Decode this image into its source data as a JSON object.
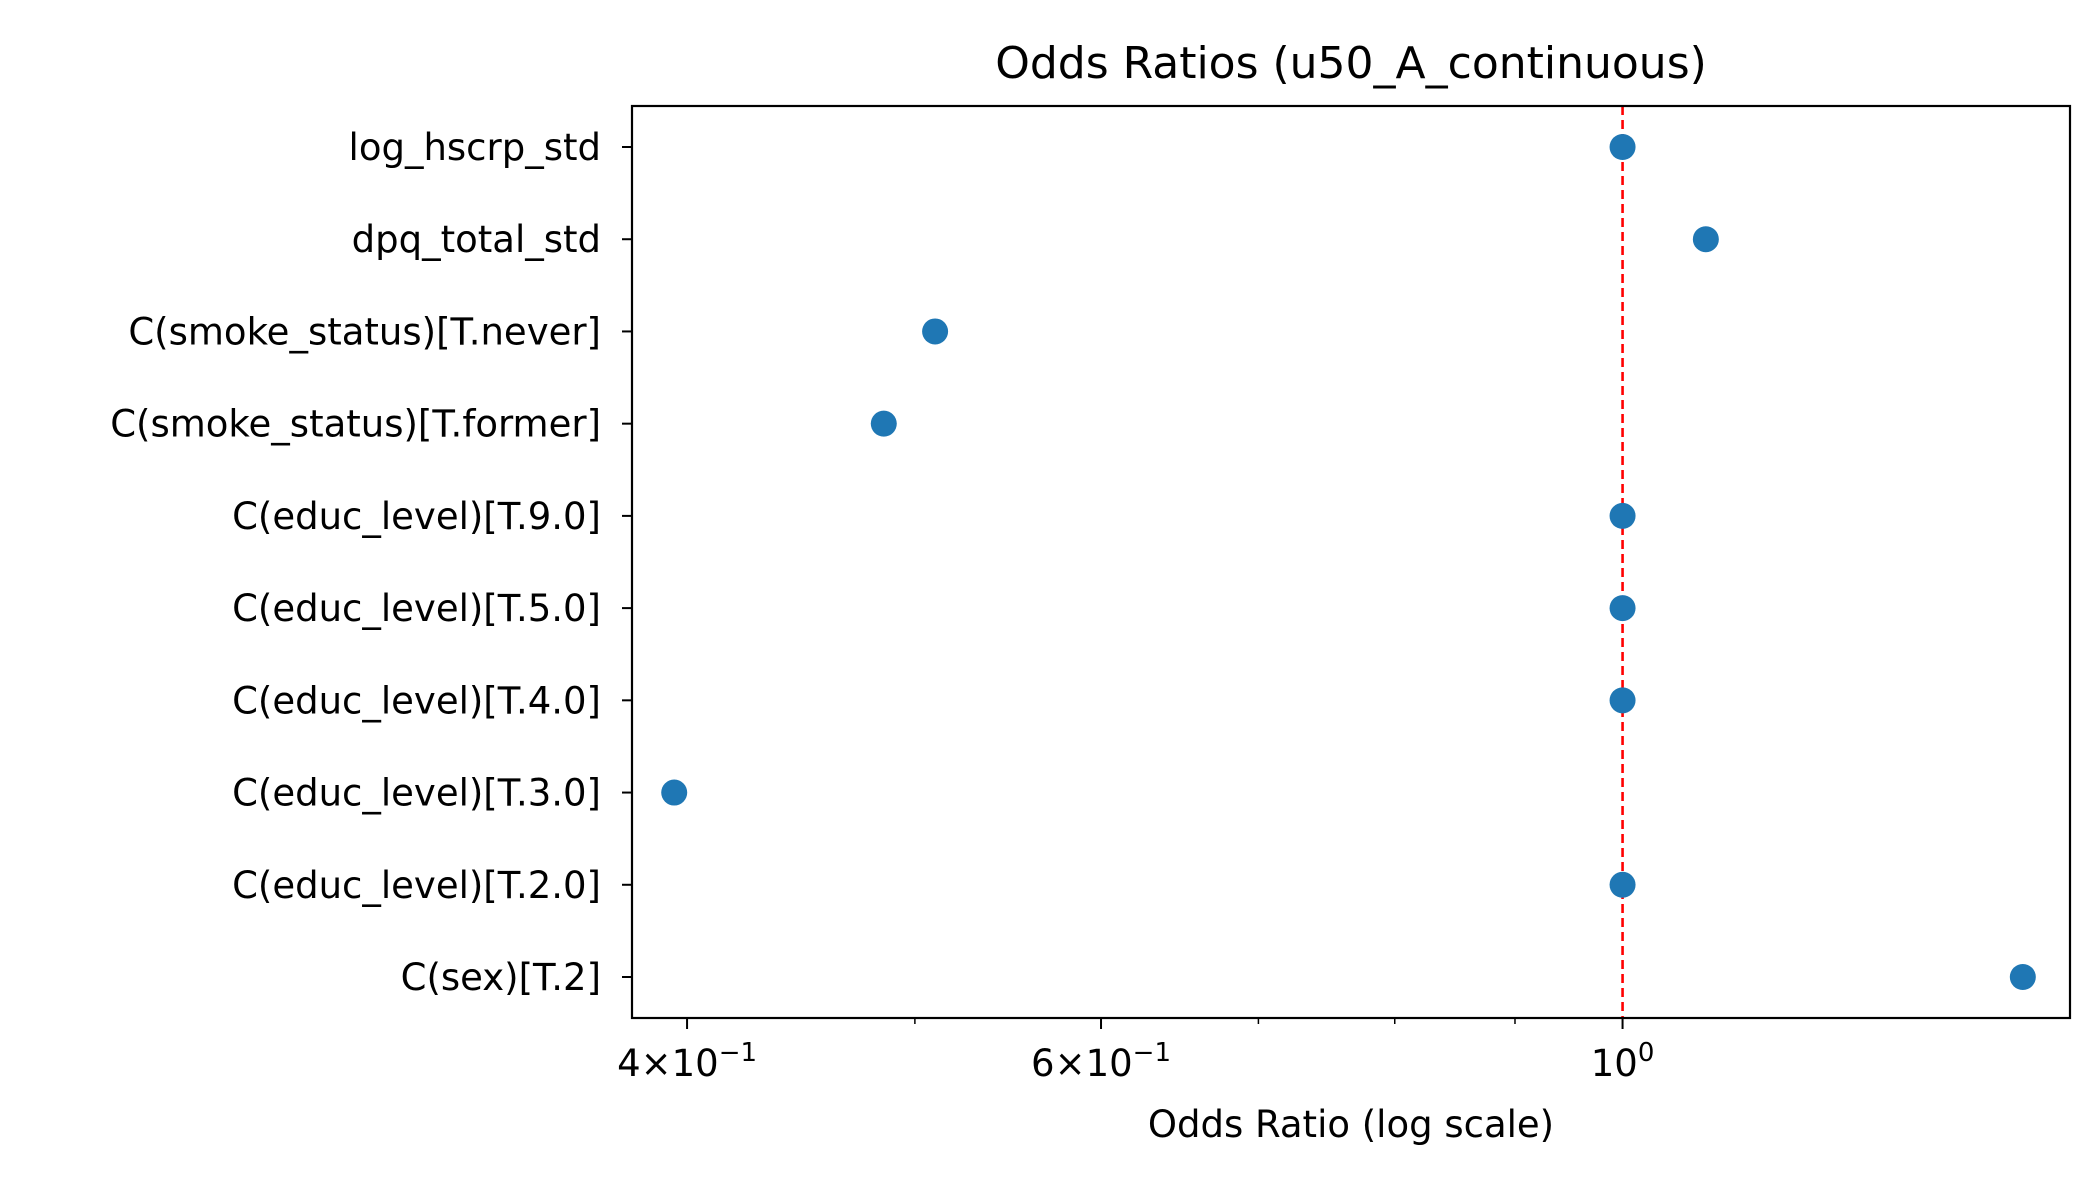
{
  "chart_data": {
    "type": "scatter",
    "title": "Odds Ratios (u50_A_continuous)",
    "xlabel": "Odds Ratio (log scale)",
    "ylabel": "",
    "xscale": "log",
    "xlim": [
      0.379,
      1.55
    ],
    "grid": false,
    "legend": "none",
    "categories": [
      "C(sex)[T.2]",
      "C(educ_level)[T.2.0]",
      "C(educ_level)[T.3.0]",
      "C(educ_level)[T.4.0]",
      "C(educ_level)[T.5.0]",
      "C(educ_level)[T.9.0]",
      "C(smoke_status)[T.former]",
      "C(smoke_status)[T.never]",
      "dpq_total_std",
      "log_hscrp_std"
    ],
    "values": [
      1.48,
      1.0,
      0.395,
      1.0,
      1.0,
      1.0,
      0.485,
      0.51,
      1.085,
      1.0
    ],
    "x_major_ticks": [
      {
        "value": 0.4,
        "mantissa": "4",
        "exp": "−1"
      },
      {
        "value": 0.6,
        "mantissa": "6",
        "exp": "−1"
      },
      {
        "value": 1.0,
        "mantissa": "",
        "exp": "0"
      }
    ],
    "x_minor_ticks": [
      0.5,
      0.7,
      0.8,
      0.9
    ],
    "reference_line": {
      "value": 1.0,
      "style": "dashed",
      "color": "#ff0000"
    },
    "colors": {
      "points": "#1f77b4",
      "axes": "#000000"
    }
  }
}
